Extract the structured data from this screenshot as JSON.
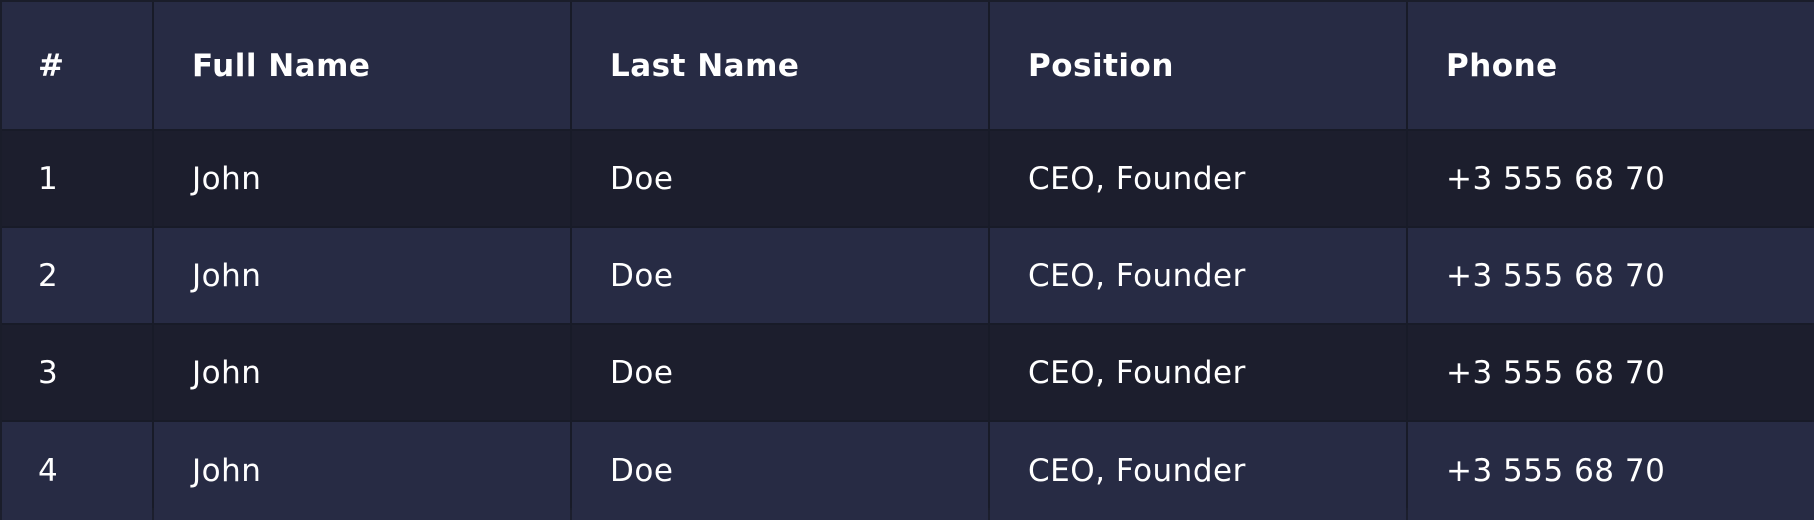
{
  "table": {
    "headers": [
      "#",
      "Full Name",
      "Last Name",
      "Position",
      "Phone"
    ],
    "rows": [
      [
        "1",
        "John",
        "Doe",
        "CEO, Founder",
        "+3 555 68 70"
      ],
      [
        "2",
        "John",
        "Doe",
        "CEO, Founder",
        "+3 555 68 70"
      ],
      [
        "3",
        "John",
        "Doe",
        "CEO, Founder",
        "+3 555 68 70"
      ],
      [
        "4",
        "John",
        "Doe",
        "CEO, Founder",
        "+3 555 68 70"
      ]
    ]
  },
  "colors": {
    "header_bg": "#272b44",
    "row_dark_bg": "#1c1e2d",
    "row_light_bg": "#272b44",
    "text": "#ffffff"
  }
}
